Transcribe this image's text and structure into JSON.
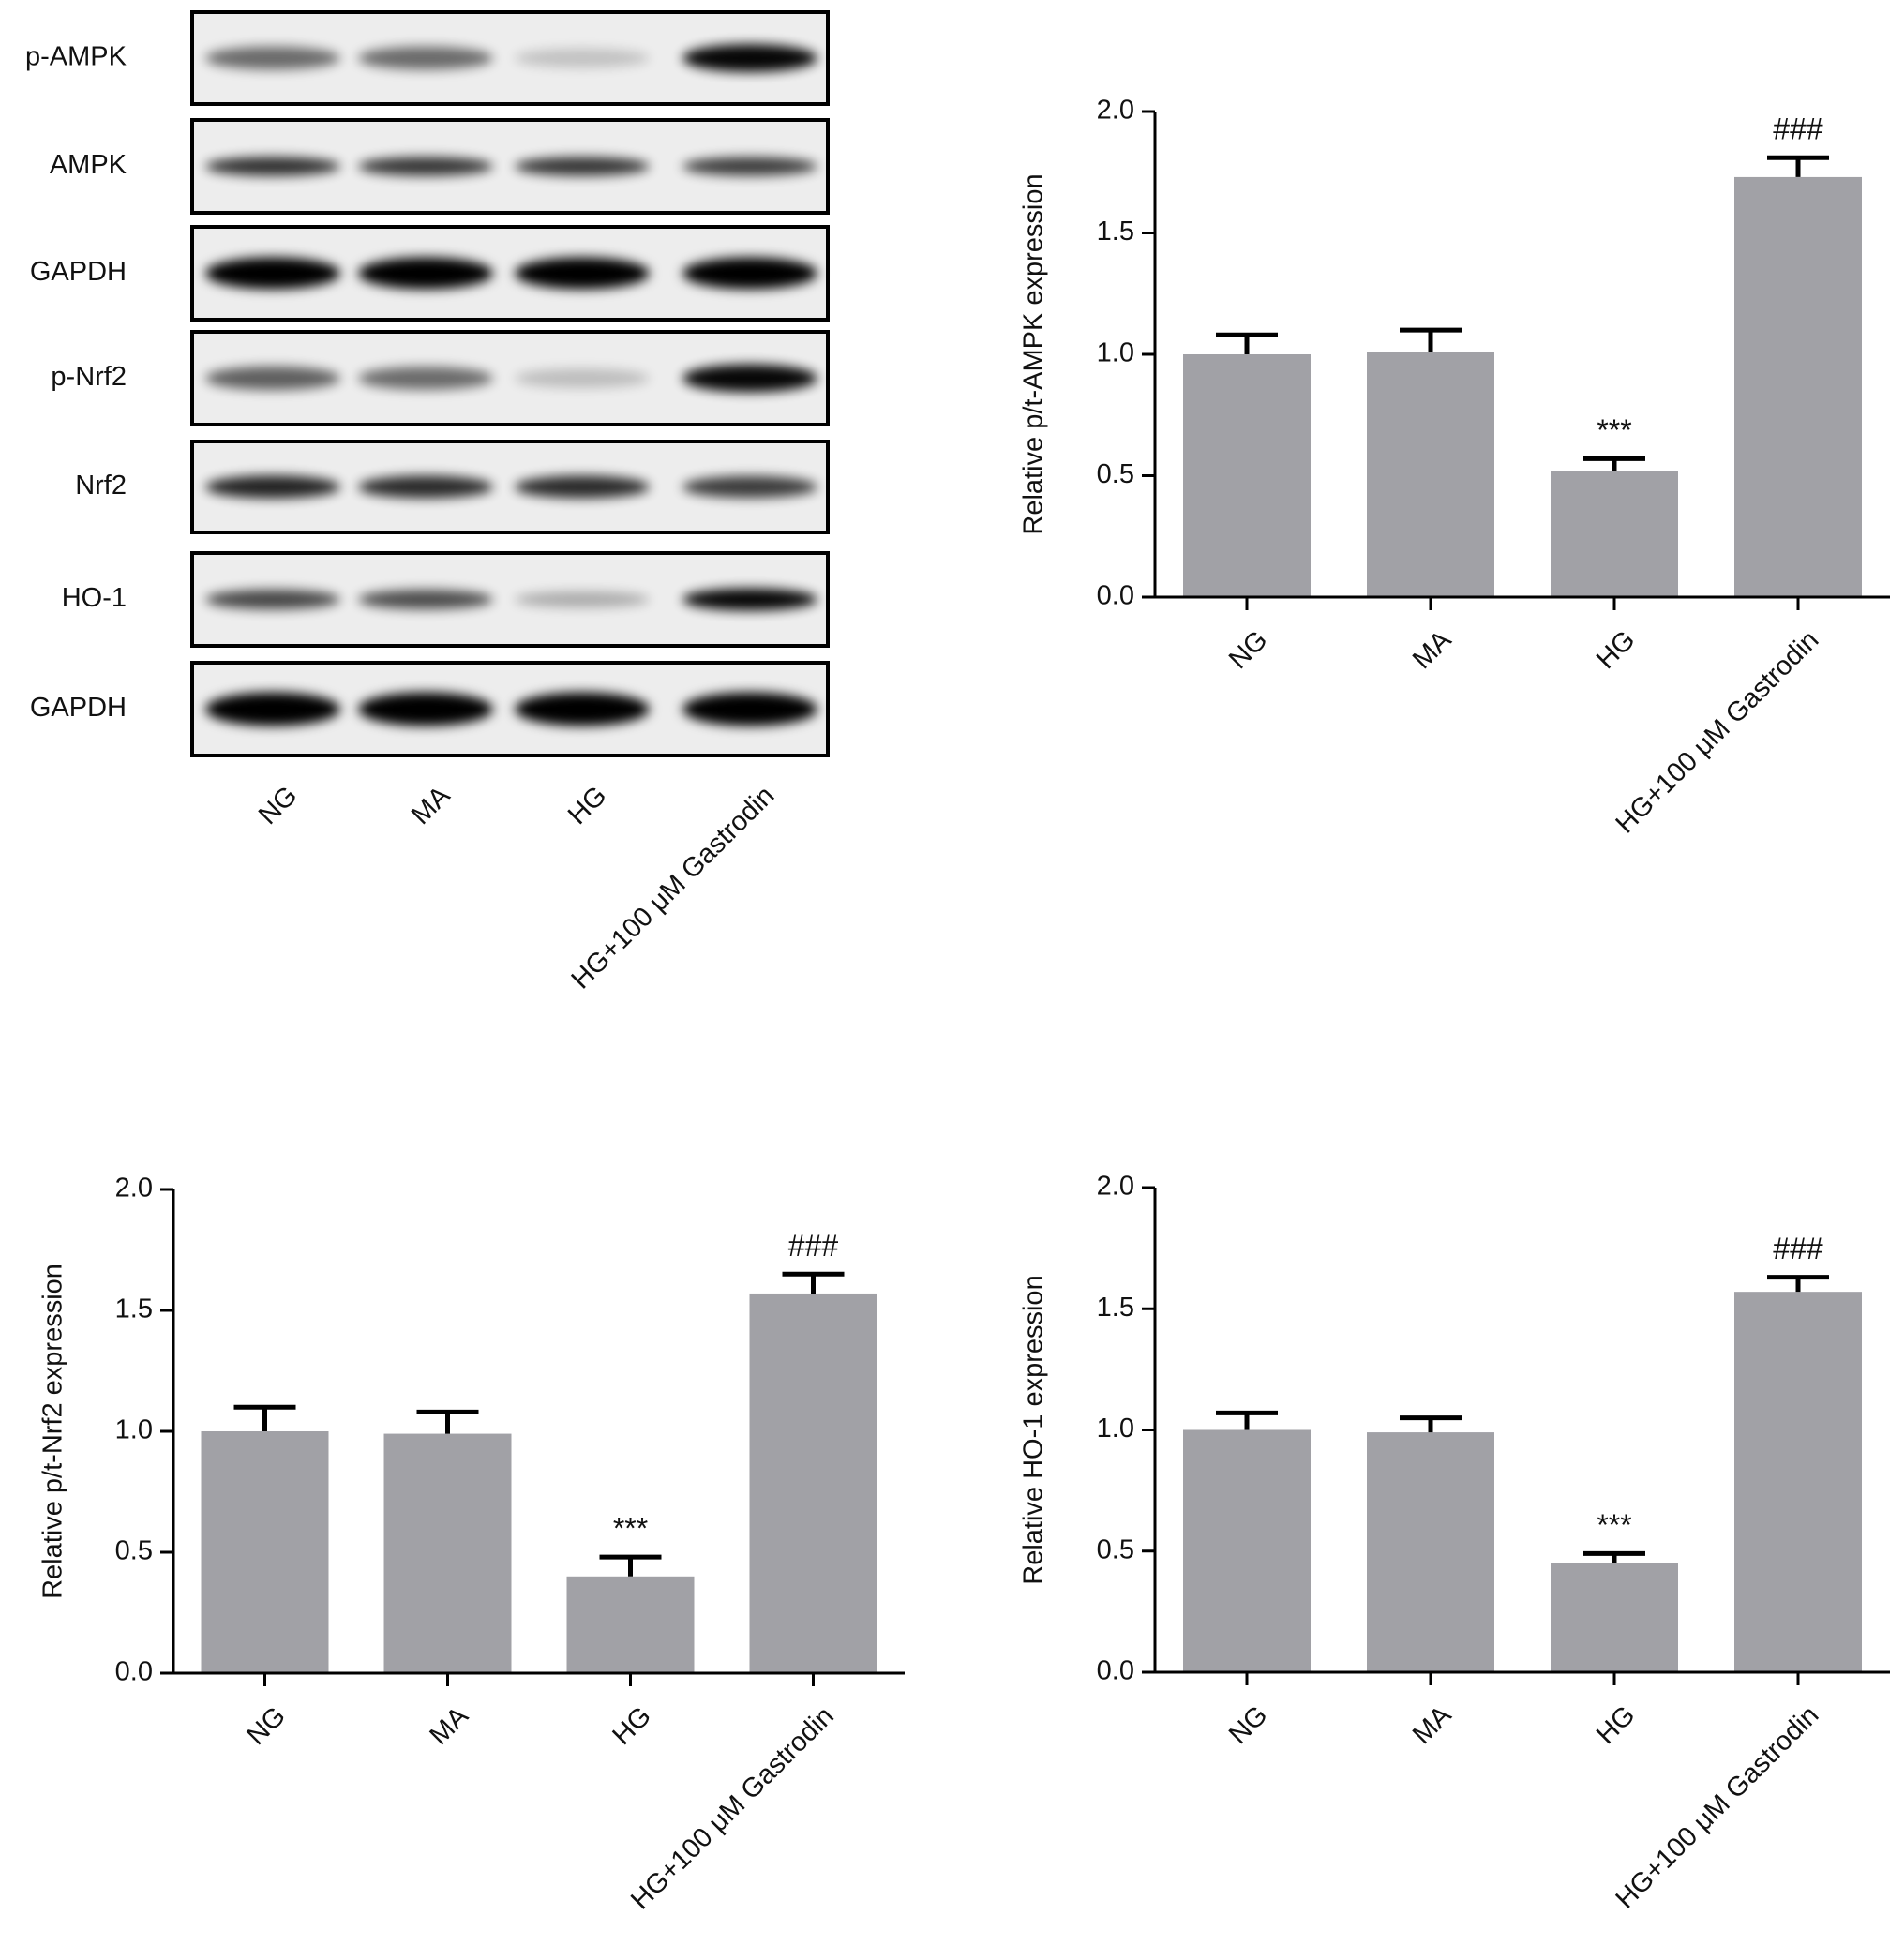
{
  "blot": {
    "rows": [
      "p-AMPK",
      "AMPK",
      "GAPDH",
      "p-Nrf2",
      "Nrf2",
      "HO-1",
      "GAPDH"
    ],
    "lanes": [
      "NG",
      "MA",
      "HG",
      "HG+100 μM Gastrodin"
    ]
  },
  "chart_data": [
    {
      "type": "bar",
      "ylabel": "Relative p/t-AMPK expression",
      "color": "#a1a1a6",
      "categories": [
        "NG",
        "MA",
        "HG",
        "HG+100 μM Gastrodin"
      ],
      "values": [
        1.0,
        1.01,
        0.52,
        1.73
      ],
      "errors": [
        0.08,
        0.09,
        0.05,
        0.08
      ],
      "annotations": [
        null,
        null,
        "***",
        "###"
      ],
      "ylim": [
        0,
        2
      ],
      "yticks": [
        {
          "value": 0,
          "label": "0.0"
        },
        0.5,
        {
          "value": 1,
          "label": "1.0"
        },
        1.5,
        {
          "value": 2,
          "label": "2.0"
        }
      ]
    },
    {
      "type": "bar",
      "ylabel": "Relative p/t-Nrf2 expression",
      "color": "#a1a1a6",
      "categories": [
        "NG",
        "MA",
        "HG",
        "HG+100 μM Gastrodin"
      ],
      "values": [
        1.0,
        0.99,
        0.4,
        1.57
      ],
      "errors": [
        0.1,
        0.09,
        0.08,
        0.08
      ],
      "annotations": [
        null,
        null,
        "***",
        "###"
      ],
      "ylim": [
        0,
        2
      ],
      "yticks": [
        {
          "value": 0,
          "label": "0.0"
        },
        0.5,
        {
          "value": 1,
          "label": "1.0"
        },
        1.5,
        {
          "value": 2,
          "label": "2.0"
        }
      ]
    },
    {
      "type": "bar",
      "ylabel": "Relative HO-1 expression",
      "color": "#a1a1a6",
      "categories": [
        "NG",
        "MA",
        "HG",
        "HG+100 μM Gastrodin"
      ],
      "values": [
        1.0,
        0.99,
        0.45,
        1.57
      ],
      "errors": [
        0.07,
        0.06,
        0.04,
        0.06
      ],
      "annotations": [
        null,
        null,
        "***",
        "###"
      ],
      "ylim": [
        0,
        2
      ],
      "yticks": [
        {
          "value": 0,
          "label": "0.0"
        },
        0.5,
        {
          "value": 1,
          "label": "1.0"
        },
        1.5,
        {
          "value": 2,
          "label": "2.0"
        }
      ]
    }
  ]
}
